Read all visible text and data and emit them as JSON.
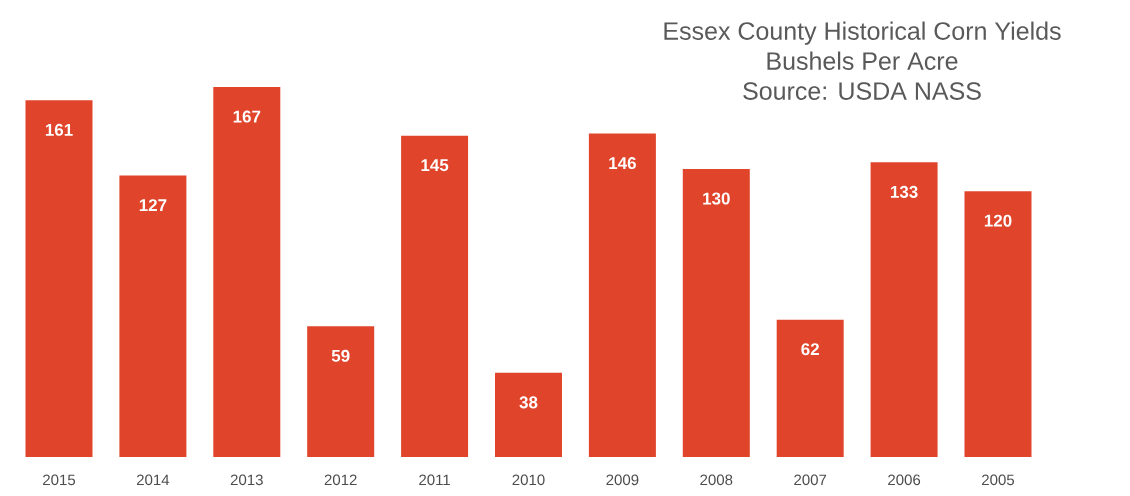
{
  "chart_data": {
    "type": "bar",
    "title": "Essex County Historical Corn Yields",
    "subtitle": "Bushels Per Acre",
    "annotations": [
      "Source: USDA NASS"
    ],
    "categories": [
      "2015",
      "2014",
      "2013",
      "2012",
      "2011",
      "2010",
      "2009",
      "2008",
      "2007",
      "2006",
      "2005"
    ],
    "values": [
      161,
      127,
      167,
      59,
      145,
      38,
      146,
      130,
      62,
      133,
      120
    ],
    "color": "#e0452b",
    "data_labels": true
  }
}
